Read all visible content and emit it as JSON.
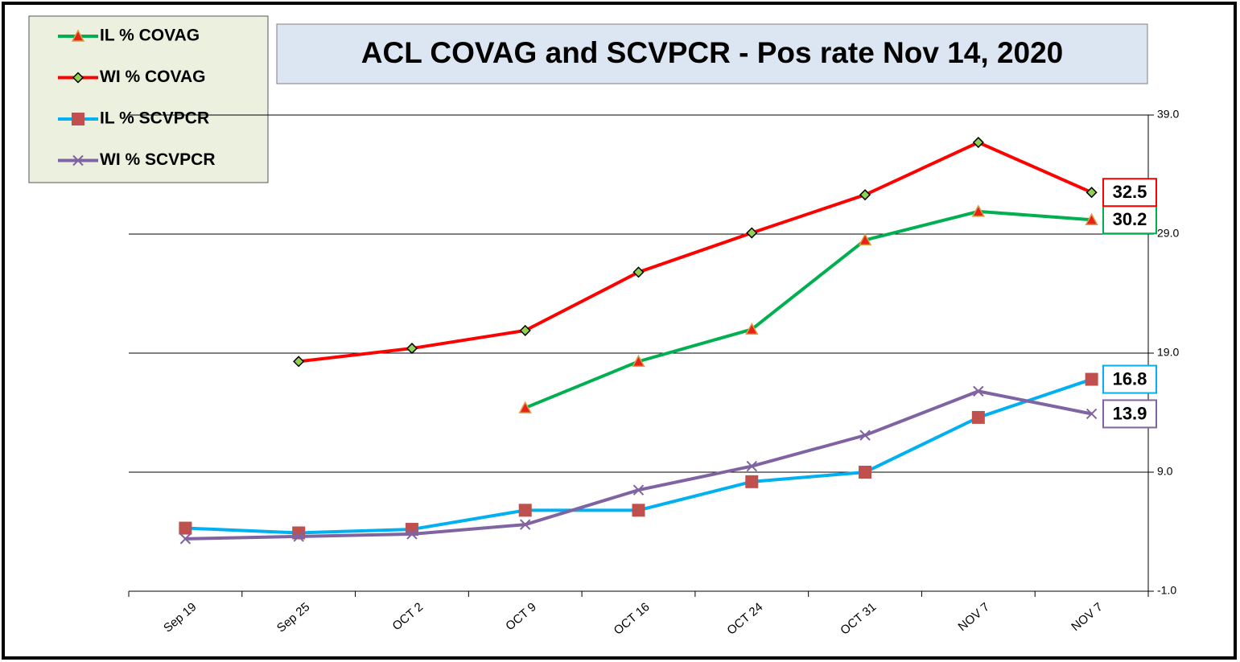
{
  "chart_data": {
    "type": "line",
    "title": "ACL COVAG and SCVPCR -  Pos rate Nov 14, 2020",
    "categories": [
      "Sep 19",
      "Sep 25",
      "OCT 2",
      "OCT 9",
      "OCT 16",
      "OCT 24",
      "OCT 31",
      "NOV 7",
      "NOV 7"
    ],
    "series": [
      {
        "name": "IL % COVAG",
        "color": "#00b050",
        "marker": "triangle",
        "marker_color": "#e8211a",
        "values": [
          null,
          null,
          null,
          14.4,
          18.3,
          21.0,
          28.5,
          30.9,
          30.2
        ]
      },
      {
        "name": "WI % COVAG",
        "color": "#ff0000",
        "marker": "diamond",
        "marker_color": "#92d050",
        "values": [
          null,
          18.3,
          19.4,
          20.9,
          25.8,
          29.1,
          32.3,
          36.7,
          32.5
        ]
      },
      {
        "name": "IL % SCVPCR",
        "color": "#00b0f0",
        "marker": "square",
        "marker_color": "#c0504d",
        "values": [
          4.3,
          3.9,
          4.2,
          5.8,
          5.8,
          8.2,
          9.0,
          13.6,
          16.8
        ]
      },
      {
        "name": "WI % SCVPCR",
        "color": "#8064a2",
        "marker": "x",
        "marker_color": "#8064a2",
        "values": [
          3.4,
          3.6,
          3.8,
          4.6,
          7.5,
          9.5,
          12.1,
          15.8,
          13.9
        ]
      }
    ],
    "ylim": [
      -1,
      39
    ],
    "yticks": [
      {
        "value": -1,
        "label": "-1.0"
      },
      {
        "value": 9,
        "label": "9.0"
      },
      {
        "value": 19,
        "label": "19.0"
      },
      {
        "value": 29,
        "label": "29.0"
      },
      {
        "value": 39,
        "label": "39.0"
      }
    ],
    "grid": true,
    "legend": "top-left"
  }
}
